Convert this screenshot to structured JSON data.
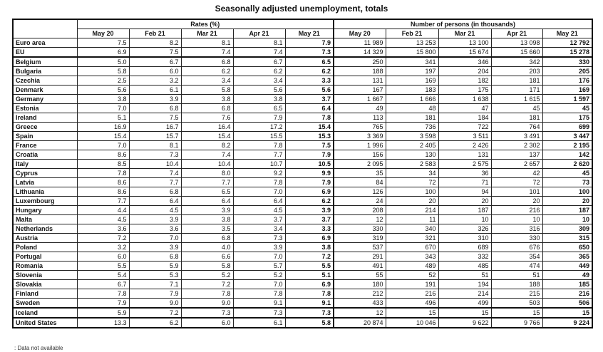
{
  "title": "Seasonally adjusted unemployment, totals",
  "groups": {
    "rates": "Rates (%)",
    "persons": "Number of persons (in thousands)"
  },
  "columns": [
    "May 20",
    "Feb 21",
    "Mar 21",
    "Apr 21",
    "May 21"
  ],
  "rows": [
    {
      "label": "Euro area",
      "rates": [
        "7.5",
        "8.2",
        "8.1",
        "8.1",
        "7.9"
      ],
      "persons": [
        "11 989",
        "13 253",
        "13 100",
        "13 098",
        "12 792"
      ]
    },
    {
      "label": "EU",
      "rates": [
        "6.9",
        "7.5",
        "7.4",
        "7.4",
        "7.3"
      ],
      "persons": [
        "14 329",
        "15 800",
        "15 674",
        "15 660",
        "15 278"
      ]
    },
    {
      "label": "Belgium",
      "rates": [
        "5.0",
        "6.7",
        "6.8",
        "6.7",
        "6.5"
      ],
      "persons": [
        "250",
        "341",
        "346",
        "342",
        "330"
      ]
    },
    {
      "label": "Bulgaria",
      "rates": [
        "5.8",
        "6.0",
        "6.2",
        "6.2",
        "6.2"
      ],
      "persons": [
        "188",
        "197",
        "204",
        "203",
        "205"
      ]
    },
    {
      "label": "Czechia",
      "rates": [
        "2.5",
        "3.2",
        "3.4",
        "3.4",
        "3.3"
      ],
      "persons": [
        "131",
        "169",
        "182",
        "181",
        "176"
      ]
    },
    {
      "label": "Denmark",
      "rates": [
        "5.6",
        "6.1",
        "5.8",
        "5.6",
        "5.6"
      ],
      "persons": [
        "167",
        "183",
        "175",
        "171",
        "169"
      ]
    },
    {
      "label": "Germany",
      "rates": [
        "3.8",
        "3.9",
        "3.8",
        "3.8",
        "3.7"
      ],
      "persons": [
        "1 667",
        "1 666",
        "1 638",
        "1 615",
        "1 597"
      ]
    },
    {
      "label": "Estonia",
      "rates": [
        "7.0",
        "6.8",
        "6.8",
        "6.5",
        "6.4"
      ],
      "persons": [
        "49",
        "48",
        "47",
        "45",
        "45"
      ]
    },
    {
      "label": "Ireland",
      "rates": [
        "5.1",
        "7.5",
        "7.6",
        "7.9",
        "7.8"
      ],
      "persons": [
        "113",
        "181",
        "184",
        "181",
        "175"
      ]
    },
    {
      "label": "Greece",
      "rates": [
        "16.9",
        "16.7",
        "16.4",
        "17.2",
        "15.4"
      ],
      "persons": [
        "765",
        "736",
        "722",
        "764",
        "699"
      ]
    },
    {
      "label": "Spain",
      "rates": [
        "15.4",
        "15.7",
        "15.4",
        "15.5",
        "15.3"
      ],
      "persons": [
        "3 369",
        "3 598",
        "3 511",
        "3 491",
        "3 447"
      ]
    },
    {
      "label": "France",
      "rates": [
        "7.0",
        "8.1",
        "8.2",
        "7.8",
        "7.5"
      ],
      "persons": [
        "1 996",
        "2 405",
        "2 426",
        "2 302",
        "2 195"
      ]
    },
    {
      "label": "Croatia",
      "rates": [
        "8.6",
        "7.3",
        "7.4",
        "7.7",
        "7.9"
      ],
      "persons": [
        "156",
        "130",
        "131",
        "137",
        "142"
      ]
    },
    {
      "label": "Italy",
      "rates": [
        "8.5",
        "10.4",
        "10.4",
        "10.7",
        "10.5"
      ],
      "persons": [
        "2 095",
        "2 583",
        "2 575",
        "2 657",
        "2 620"
      ]
    },
    {
      "label": "Cyprus",
      "rates": [
        "7.8",
        "7.4",
        "8.0",
        "9.2",
        "9.9"
      ],
      "persons": [
        "35",
        "34",
        "36",
        "42",
        "45"
      ]
    },
    {
      "label": "Latvia",
      "rates": [
        "8.6",
        "7.7",
        "7.7",
        "7.8",
        "7.9"
      ],
      "persons": [
        "84",
        "72",
        "71",
        "72",
        "73"
      ]
    },
    {
      "label": "Lithuania",
      "rates": [
        "8.6",
        "6.8",
        "6.5",
        "7.0",
        "6.9"
      ],
      "persons": [
        "126",
        "100",
        "94",
        "101",
        "100"
      ]
    },
    {
      "label": "Luxembourg",
      "rates": [
        "7.7",
        "6.4",
        "6.4",
        "6.4",
        "6.2"
      ],
      "persons": [
        "24",
        "20",
        "20",
        "20",
        "20"
      ]
    },
    {
      "label": "Hungary",
      "rates": [
        "4.4",
        "4.5",
        "3.9",
        "4.5",
        "3.9"
      ],
      "persons": [
        "208",
        "214",
        "187",
        "216",
        "187"
      ]
    },
    {
      "label": "Malta",
      "rates": [
        "4.5",
        "3.9",
        "3.8",
        "3.7",
        "3.7"
      ],
      "persons": [
        "12",
        "11",
        "10",
        "10",
        "10"
      ]
    },
    {
      "label": "Netherlands",
      "rates": [
        "3.6",
        "3.6",
        "3.5",
        "3.4",
        "3.3"
      ],
      "persons": [
        "330",
        "340",
        "326",
        "316",
        "309"
      ]
    },
    {
      "label": "Austria",
      "rates": [
        "7.2",
        "7.0",
        "6.8",
        "7.3",
        "6.9"
      ],
      "persons": [
        "319",
        "321",
        "310",
        "330",
        "315"
      ]
    },
    {
      "label": "Poland",
      "rates": [
        "3.2",
        "3.9",
        "4.0",
        "3.9",
        "3.8"
      ],
      "persons": [
        "537",
        "670",
        "689",
        "676",
        "650"
      ]
    },
    {
      "label": "Portugal",
      "rates": [
        "6.0",
        "6.8",
        "6.6",
        "7.0",
        "7.2"
      ],
      "persons": [
        "291",
        "343",
        "332",
        "354",
        "365"
      ]
    },
    {
      "label": "Romania",
      "rates": [
        "5.5",
        "5.9",
        "5.8",
        "5.7",
        "5.5"
      ],
      "persons": [
        "491",
        "489",
        "485",
        "474",
        "449"
      ]
    },
    {
      "label": "Slovenia",
      "rates": [
        "5.4",
        "5.3",
        "5.2",
        "5.2",
        "5.1"
      ],
      "persons": [
        "55",
        "52",
        "51",
        "51",
        "49"
      ]
    },
    {
      "label": "Slovakia",
      "rates": [
        "6.7",
        "7.1",
        "7.2",
        "7.0",
        "6.9"
      ],
      "persons": [
        "180",
        "191",
        "194",
        "188",
        "185"
      ]
    },
    {
      "label": "Finland",
      "rates": [
        "7.8",
        "7.9",
        "7.8",
        "7.8",
        "7.8"
      ],
      "persons": [
        "212",
        "216",
        "214",
        "215",
        "216"
      ]
    },
    {
      "label": "Sweden",
      "rates": [
        "7.9",
        "9.0",
        "9.0",
        "9.1",
        "9.1"
      ],
      "persons": [
        "433",
        "496",
        "499",
        "503",
        "506"
      ]
    },
    {
      "label": "Iceland",
      "rates": [
        "5.9",
        "7.2",
        "7.3",
        "7.3",
        "7.3"
      ],
      "persons": [
        "12",
        "15",
        "15",
        "15",
        "15"
      ]
    },
    {
      "label": "United States",
      "rates": [
        "13.3",
        "6.2",
        "6.0",
        "6.1",
        "5.8"
      ],
      "persons": [
        "20 874",
        "10 046",
        "9 622",
        "9 766",
        "9 224"
      ]
    }
  ],
  "footnote": ": Data not available"
}
